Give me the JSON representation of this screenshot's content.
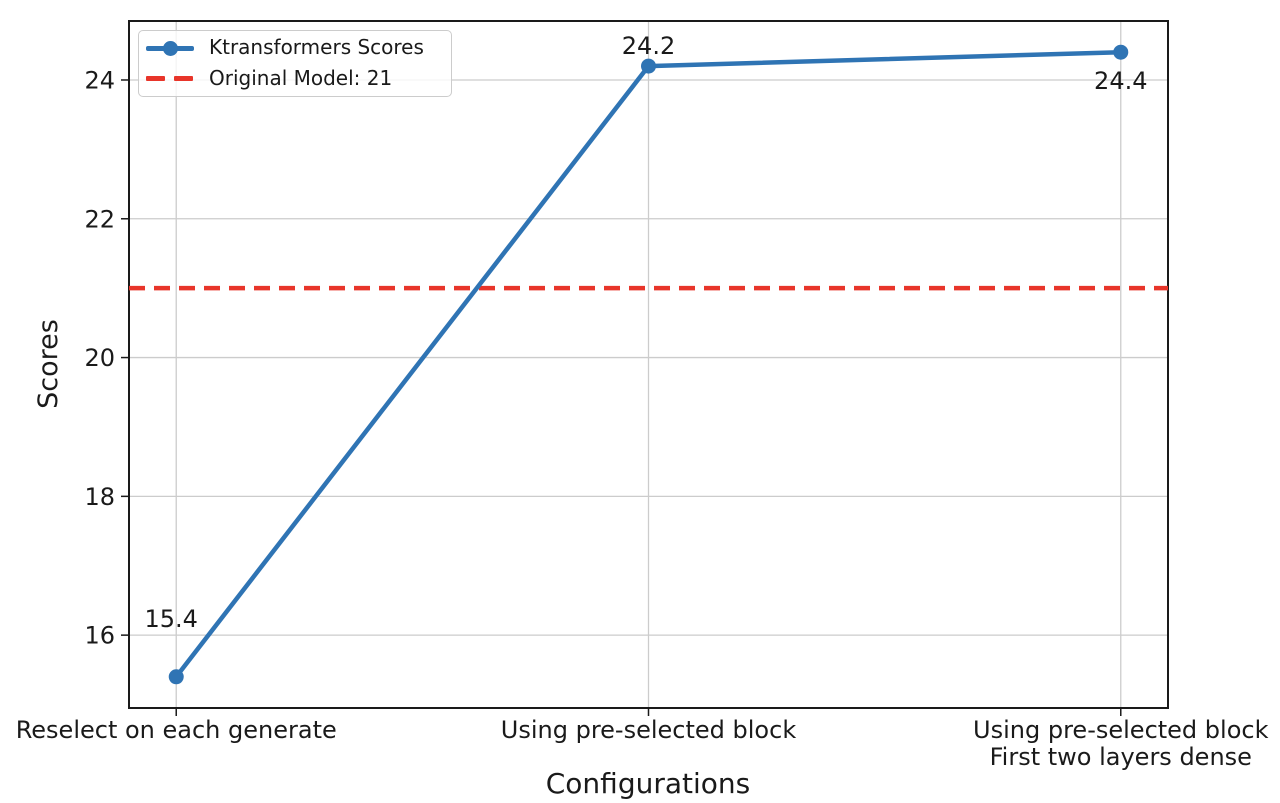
{
  "chart_data": {
    "type": "line",
    "title": "",
    "xlabel": "Configurations",
    "ylabel": "Scores",
    "categories": [
      "Reselect on each generate",
      "Using pre-selected block",
      "Using pre-selected block\nFirst two layers dense"
    ],
    "series": [
      {
        "name": "Ktransformers Scores",
        "color": "#2f74b4",
        "marker": "circle",
        "values": [
          15.4,
          24.2,
          24.4
        ],
        "point_labels": [
          "15.4",
          "24.2",
          "24.4"
        ]
      }
    ],
    "reference_line": {
      "name": "Original Model: 21",
      "value": 21,
      "color": "#e8352a",
      "style": "dashed"
    },
    "ylim": [
      14.95,
      24.85
    ],
    "yticks": [
      16,
      18,
      20,
      22,
      24
    ],
    "grid": true,
    "legend_position": "upper-left"
  },
  "colors": {
    "series": "#2f74b4",
    "reference": "#e8352a",
    "grid": "#cccccc",
    "spine": "#1a1a1a",
    "text": "#1a1a1a",
    "legend_border": "#cccccc"
  }
}
